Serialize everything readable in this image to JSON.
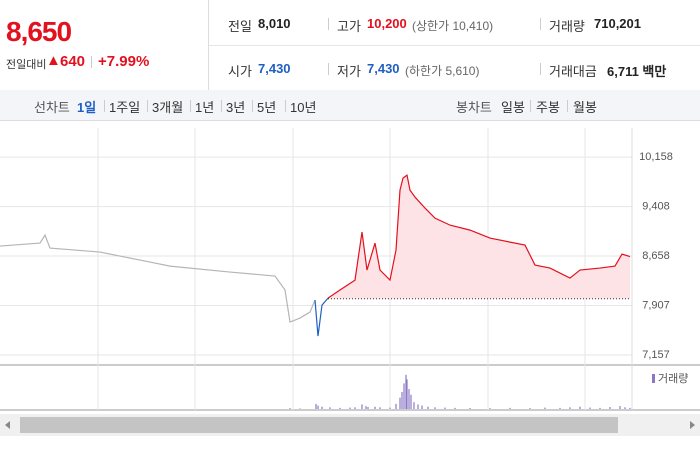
{
  "header": {
    "price": "8,650",
    "change_label": "전일대비",
    "change": "640",
    "change_rate": "+7.99%"
  },
  "stats": [
    {
      "label": "전일",
      "value": "8,010"
    },
    {
      "label": "고가",
      "value": "10,200",
      "note": "(상한가 10,410)"
    },
    {
      "label": "거래량",
      "value": "710,201"
    },
    {
      "label": "시가",
      "value": "7,430"
    },
    {
      "label": "저가",
      "value": "7,430",
      "note": "(하한가 5,610)"
    },
    {
      "label": "거래대금",
      "value": "6,711 백만"
    }
  ],
  "tabs": {
    "line_label": "선차트",
    "line_periods": [
      "1일",
      "1주일",
      "3개월",
      "1년",
      "3년",
      "5년",
      "10년"
    ],
    "selected": 0,
    "candle_label": "봉차트",
    "candle_periods": [
      "일봉",
      "주봉",
      "월봉"
    ]
  },
  "chart_data": {
    "type": "line",
    "x": [
      0,
      40,
      45,
      50,
      100,
      150,
      170,
      230,
      275,
      285,
      290,
      300,
      310,
      315,
      318,
      322,
      328,
      340,
      355,
      362,
      367,
      375,
      380,
      390,
      396,
      400,
      403,
      407,
      410,
      415,
      425,
      435,
      450,
      470,
      490,
      510,
      525,
      535,
      550,
      570,
      580,
      600,
      615,
      622,
      630
    ],
    "xlim": [
      0,
      632
    ],
    "ylim": [
      7005,
      10600
    ],
    "yticks": [
      {
        "value": 10158,
        "label": "10,158"
      },
      {
        "value": 9408,
        "label": "9,408"
      },
      {
        "value": 8658,
        "label": "8,658"
      },
      {
        "value": 7907,
        "label": "7,907"
      },
      {
        "value": 7157,
        "label": "7,157"
      }
    ],
    "baseline": 8010,
    "series": [
      {
        "color": "#b5b5b5",
        "values": [
          8809,
          8854,
          8975,
          8779,
          8718,
          8566,
          8505,
          8415,
          8354,
          8142,
          7657,
          7717,
          7808,
          7990,
          null,
          null,
          null,
          null,
          null,
          null,
          null,
          null,
          null,
          null,
          null,
          null,
          null,
          null,
          null,
          null,
          null,
          null,
          null,
          null,
          null,
          null,
          null,
          null,
          null,
          null,
          null,
          null,
          null,
          null,
          null
        ]
      },
      {
        "color": "#1e5fc4",
        "values": [
          null,
          null,
          null,
          null,
          null,
          null,
          null,
          null,
          null,
          null,
          null,
          null,
          null,
          7990,
          7444,
          7914,
          8020,
          null,
          null,
          null,
          null,
          null,
          null,
          null,
          null,
          null,
          null,
          null,
          null,
          null,
          null,
          null,
          null,
          null,
          null,
          null,
          null,
          null,
          null,
          null,
          null,
          null,
          null,
          null,
          null
        ]
      },
      {
        "color": "#e3101e",
        "fill": "#fde3e5",
        "values": [
          null,
          null,
          null,
          null,
          null,
          null,
          null,
          null,
          null,
          null,
          null,
          null,
          null,
          null,
          null,
          null,
          8020,
          8142,
          8293,
          9021,
          8445,
          8854,
          8445,
          8293,
          8748,
          9658,
          9840,
          9885,
          9658,
          9552,
          9385,
          9233,
          9127,
          9051,
          8930,
          8869,
          8824,
          8521,
          8475,
          8324,
          8445,
          8475,
          8505,
          8687,
          8650
        ]
      }
    ],
    "volume": {
      "name": "거래량",
      "color": "#8b78c4",
      "ylim": [
        0,
        65000
      ],
      "x": [
        290,
        300,
        316,
        318,
        322,
        330,
        340,
        350,
        355,
        362,
        366,
        368,
        375,
        380,
        390,
        396,
        400,
        402,
        404,
        406,
        407,
        409,
        411,
        414,
        418,
        422,
        428,
        435,
        445,
        455,
        470,
        490,
        510,
        530,
        545,
        560,
        570,
        580,
        590,
        600,
        610,
        620,
        625,
        630
      ],
      "values": [
        1500,
        1000,
        9000,
        6000,
        4000,
        3000,
        2000,
        2500,
        3000,
        8000,
        5000,
        3500,
        4000,
        3000,
        2500,
        9000,
        20000,
        30000,
        45000,
        60000,
        52000,
        35000,
        25000,
        12000,
        8000,
        6000,
        4000,
        3000,
        2500,
        2000,
        1800,
        1500,
        2000,
        1500,
        2500,
        2000,
        3000,
        4000,
        2500,
        2000,
        3500,
        5000,
        3000,
        2000
      ]
    }
  }
}
